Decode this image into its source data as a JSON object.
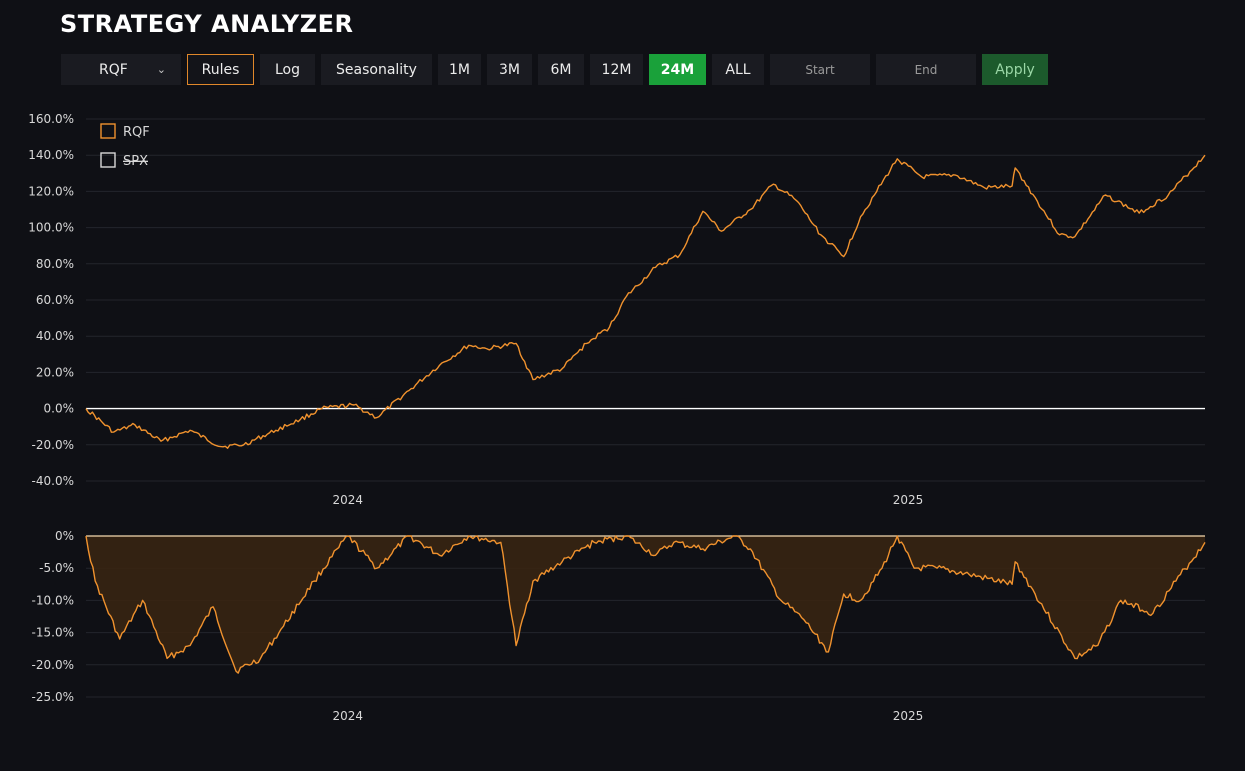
{
  "header": {
    "title": "STRATEGY ANALYZER"
  },
  "toolbar": {
    "symbol": "RQF",
    "rules": "Rules",
    "log": "Log",
    "seasonality": "Seasonality",
    "ranges": [
      "1M",
      "3M",
      "6M",
      "12M",
      "24M",
      "ALL"
    ],
    "active_range": "24M",
    "start_placeholder": "Start",
    "end_placeholder": "End",
    "apply": "Apply"
  },
  "colors": {
    "background": "#0f1015",
    "series": "#f0922e",
    "active": "#1aa13a",
    "apply": "#1c5a2c",
    "zero_line": "#ffffff"
  },
  "chart_data": [
    {
      "type": "line",
      "title": "",
      "ylabel": "",
      "xlabel": "",
      "ylim": [
        -40,
        160
      ],
      "y_ticks": [
        "160.0%",
        "140.0%",
        "120.0%",
        "100.0%",
        "80.0%",
        "60.0%",
        "40.0%",
        "20.0%",
        "0.0%",
        "-20.0%",
        "-40.0%"
      ],
      "y_tick_values": [
        160,
        140,
        120,
        100,
        80,
        60,
        40,
        20,
        0,
        -20,
        -40
      ],
      "x_ticks": [
        "2024",
        "2025"
      ],
      "xlim": [
        "2023-07-14",
        "2025-07-14"
      ],
      "x_tick_dates": [
        "2024-01-01",
        "2025-01-01"
      ],
      "legend": {
        "placement": "top-left",
        "entries": [
          {
            "name": "RQF",
            "visible": true
          },
          {
            "name": "SPX",
            "visible": false
          }
        ]
      },
      "grid": true,
      "series": [
        {
          "name": "RQF",
          "x": [
            "2023-07-14",
            "2023-08-01",
            "2023-08-15",
            "2023-09-01",
            "2023-09-20",
            "2023-10-10",
            "2023-10-25",
            "2023-11-15",
            "2023-12-01",
            "2023-12-15",
            "2024-01-05",
            "2024-01-20",
            "2024-02-10",
            "2024-03-01",
            "2024-03-20",
            "2024-04-01",
            "2024-04-20",
            "2024-05-01",
            "2024-05-20",
            "2024-06-05",
            "2024-06-20",
            "2024-07-01",
            "2024-07-20",
            "2024-08-05",
            "2024-08-20",
            "2024-09-01",
            "2024-09-20",
            "2024-10-05",
            "2024-10-20",
            "2024-11-05",
            "2024-11-20",
            "2024-12-01",
            "2024-12-10",
            "2024-12-25",
            "2025-01-10",
            "2025-02-01",
            "2025-02-20",
            "2025-03-10",
            "2025-03-12",
            "2025-04-10",
            "2025-04-20",
            "2025-05-10",
            "2025-06-01",
            "2025-06-20",
            "2025-07-14"
          ],
          "y": [
            0,
            -13,
            -9,
            -18,
            -12,
            -21,
            -20,
            -12,
            -6,
            0,
            2,
            -5,
            10,
            24,
            35,
            33,
            36,
            16,
            22,
            36,
            45,
            62,
            78,
            85,
            109,
            98,
            110,
            124,
            115,
            96,
            84,
            106,
            118,
            138,
            128,
            129,
            122,
            123,
            133,
            96,
            95,
            118,
            108,
            118,
            140
          ]
        }
      ]
    },
    {
      "type": "area",
      "title": "",
      "ylabel": "",
      "xlabel": "",
      "ylim": [
        -25,
        0
      ],
      "y_ticks": [
        "0%",
        "-5.0%",
        "-10.0%",
        "-15.0%",
        "-20.0%",
        "-25.0%"
      ],
      "y_tick_values": [
        0,
        -5,
        -10,
        -15,
        -20,
        -25
      ],
      "x_ticks": [
        "2024",
        "2025"
      ],
      "xlim": [
        "2023-07-14",
        "2025-07-14"
      ],
      "x_tick_dates": [
        "2024-01-01",
        "2025-01-01"
      ],
      "grid": true,
      "series": [
        {
          "name": "RQF",
          "x": [
            "2023-07-14",
            "2023-07-20",
            "2023-08-05",
            "2023-08-20",
            "2023-09-05",
            "2023-09-20",
            "2023-10-05",
            "2023-10-20",
            "2023-11-05",
            "2023-11-20",
            "2023-12-10",
            "2024-01-01",
            "2024-01-20",
            "2024-02-10",
            "2024-03-01",
            "2024-03-20",
            "2024-04-10",
            "2024-04-20",
            "2024-05-01",
            "2024-05-20",
            "2024-06-10",
            "2024-07-01",
            "2024-07-20",
            "2024-08-01",
            "2024-08-20",
            "2024-09-10",
            "2024-09-20",
            "2024-10-10",
            "2024-10-25",
            "2024-11-10",
            "2024-11-20",
            "2024-12-01",
            "2024-12-15",
            "2024-12-25",
            "2025-01-05",
            "2025-01-20",
            "2025-02-10",
            "2025-03-10",
            "2025-03-12",
            "2025-04-20",
            "2025-05-05",
            "2025-05-20",
            "2025-06-10",
            "2025-06-25",
            "2025-07-14"
          ],
          "y": [
            0,
            -7,
            -16,
            -10,
            -19,
            -17,
            -11,
            -21,
            -19,
            -14,
            -7,
            0,
            -5,
            0,
            -3,
            0,
            -1,
            -17,
            -7,
            -4,
            -1,
            0,
            -3,
            -1,
            -2,
            0,
            -2,
            -10,
            -13,
            -18,
            -9,
            -10,
            -5,
            0,
            -5,
            -5,
            -6,
            -7.5,
            -4,
            -19,
            -17,
            -10,
            -12,
            -7,
            -1
          ]
        }
      ]
    }
  ]
}
